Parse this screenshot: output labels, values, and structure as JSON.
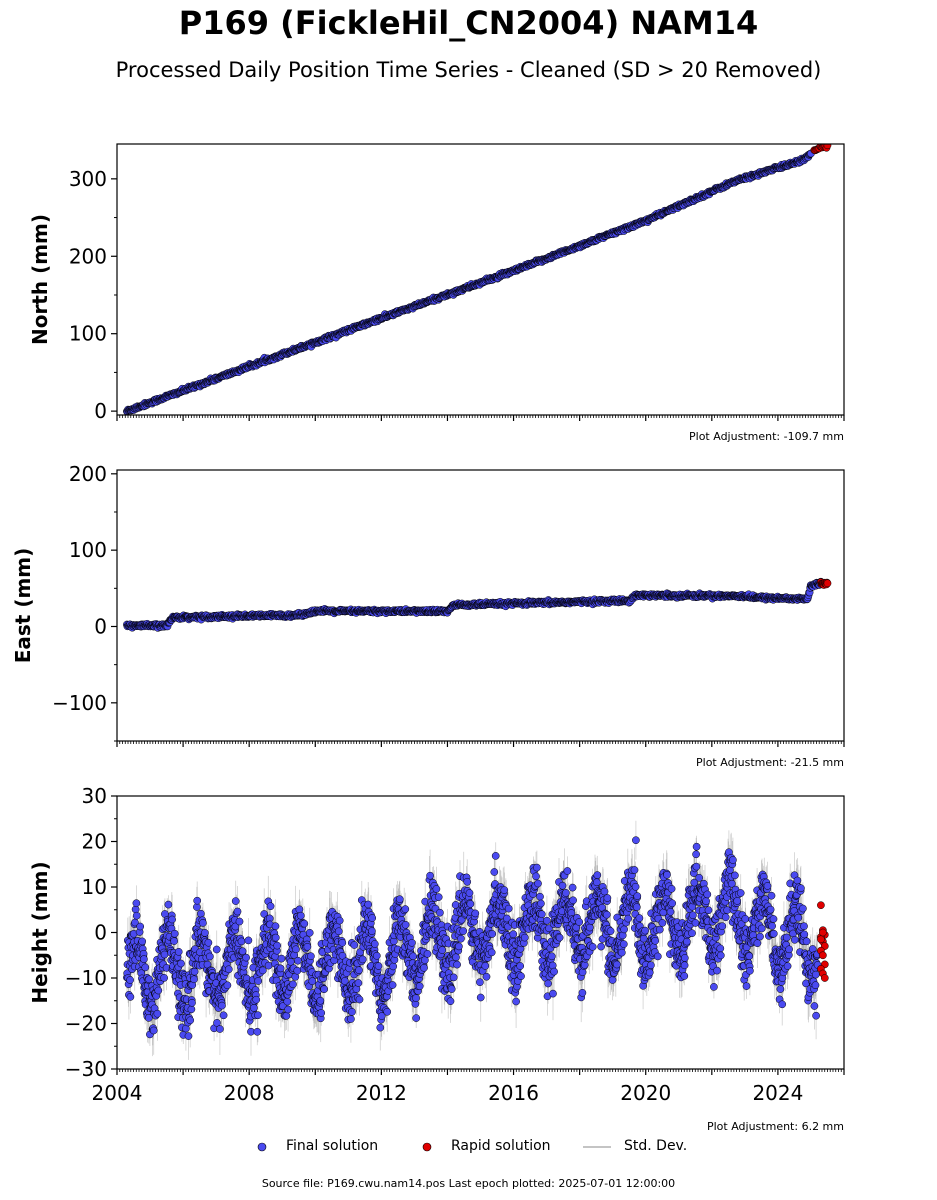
{
  "title": "P169 (FickleHil_CN2004) NAM14",
  "subtitle": "Processed Daily Position Time Series - Cleaned (SD > 20 Removed)",
  "source_note": "Source file: P169.cwu.nam14.pos  Last epoch plotted: 2025-07-01 12:00:00",
  "legend": {
    "final_label": "Final solution",
    "rapid_label": "Rapid solution",
    "std_label": "Std. Dev."
  },
  "colors": {
    "final": "#4a4af0",
    "rapid": "#e00000",
    "std": "#b0b0b0",
    "marker_edge": "#000000"
  },
  "chart_data": [
    {
      "type": "scatter",
      "ylabel": "North (mm)",
      "xlim": [
        2004.0,
        2026.0
      ],
      "ylim": [
        -5,
        345
      ],
      "yticks": [
        0,
        100,
        200,
        300
      ],
      "adjustment": "Plot Adjustment: -109.7 mm",
      "series": [
        {
          "name": "Final solution",
          "trend": [
            [
              2004.3,
              0
            ],
            [
              2012.0,
              120
            ],
            [
              2016.0,
              181
            ],
            [
              2020.0,
              246
            ],
            [
              2022.7,
              297
            ],
            [
              2024.8,
              325
            ],
            [
              2025.0,
              332
            ]
          ],
          "std_min": 1.0,
          "std_max": 3.0
        },
        {
          "name": "Rapid solution",
          "trend": [
            [
              2025.1,
              337
            ],
            [
              2025.5,
              343
            ]
          ]
        }
      ]
    },
    {
      "type": "scatter",
      "ylabel": "East (mm)",
      "xlim": [
        2004.0,
        2026.0
      ],
      "ylim": [
        -150,
        205
      ],
      "yticks": [
        -100,
        0,
        100,
        200
      ],
      "adjustment": "Plot Adjustment: -21.5 mm",
      "series": [
        {
          "name": "Final solution",
          "trend": [
            [
              2004.3,
              1
            ],
            [
              2005.5,
              1
            ],
            [
              2005.7,
              12
            ],
            [
              2009.5,
              15
            ],
            [
              2010.0,
              20
            ],
            [
              2014.0,
              20
            ],
            [
              2014.2,
              28
            ],
            [
              2019.5,
              34
            ],
            [
              2019.7,
              41
            ],
            [
              2023.0,
              40
            ],
            [
              2023.3,
              38
            ],
            [
              2024.9,
              36
            ],
            [
              2025.0,
              53
            ],
            [
              2025.3,
              57
            ]
          ],
          "std_min": 1.0,
          "std_max": 3.0
        },
        {
          "name": "Rapid solution",
          "trend": [
            [
              2025.3,
              56
            ],
            [
              2025.5,
              56
            ]
          ]
        }
      ]
    },
    {
      "type": "scatter",
      "ylabel": "Height (mm)",
      "xlim": [
        2004.0,
        2026.0
      ],
      "ylim": [
        -30,
        30
      ],
      "yticks": [
        -30,
        -20,
        -10,
        0,
        10,
        20,
        30
      ],
      "xticks": [
        2004,
        2008,
        2012,
        2016,
        2020,
        2024
      ],
      "adjustment": "Plot Adjustment: 6.2 mm",
      "series": [
        {
          "name": "Final solution",
          "trend": [
            [
              2004.3,
              -9
            ],
            [
              2012.0,
              -6
            ],
            [
              2014.0,
              -1
            ],
            [
              2016.0,
              1
            ],
            [
              2020.0,
              1
            ],
            [
              2022.5,
              4
            ],
            [
              2025.2,
              -3
            ]
          ],
          "seasonal_amplitude": 7.5,
          "noise": 3.5,
          "std_min": 2.0,
          "std_max": 6.0
        },
        {
          "name": "Rapid solution",
          "values_y": [
            6,
            0.5,
            -0.5,
            -1,
            -2,
            -3,
            -4,
            -5,
            -7,
            -8,
            -9,
            -10,
            -1.5,
            0
          ]
        }
      ]
    }
  ]
}
